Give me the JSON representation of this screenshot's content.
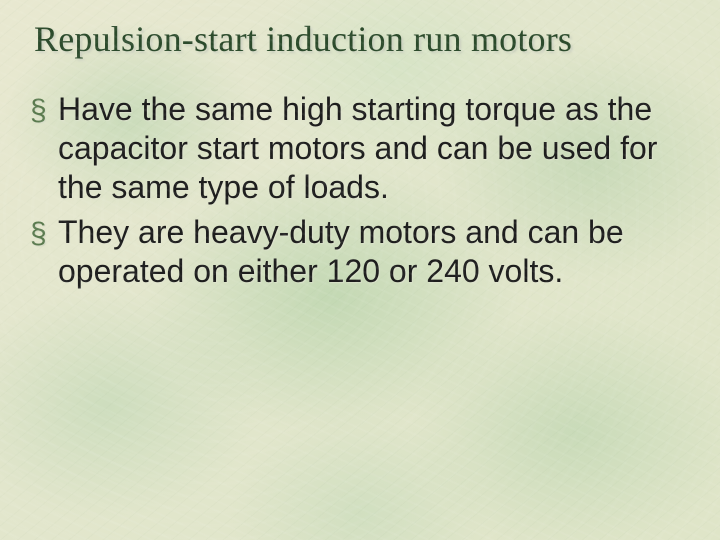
{
  "slide": {
    "title": "Repulsion-start induction run motors",
    "bullets": [
      {
        "marker": "§",
        "text": "Have the same high starting torque as the capacitor start motors and can be used for the same type of loads."
      },
      {
        "marker": "§",
        "text": "They are heavy-duty motors and can be operated on either 120 or 240 volts."
      }
    ],
    "colors": {
      "title_color": "#2b4a2b",
      "bullet_marker_color": "#5a7a4e",
      "body_text_color": "#1d1d1d",
      "background_base": "#e4e7cd"
    },
    "typography": {
      "title_font": "Times New Roman",
      "title_fontsize_pt": 27,
      "body_font": "Arial",
      "body_fontsize_pt": 24
    }
  }
}
